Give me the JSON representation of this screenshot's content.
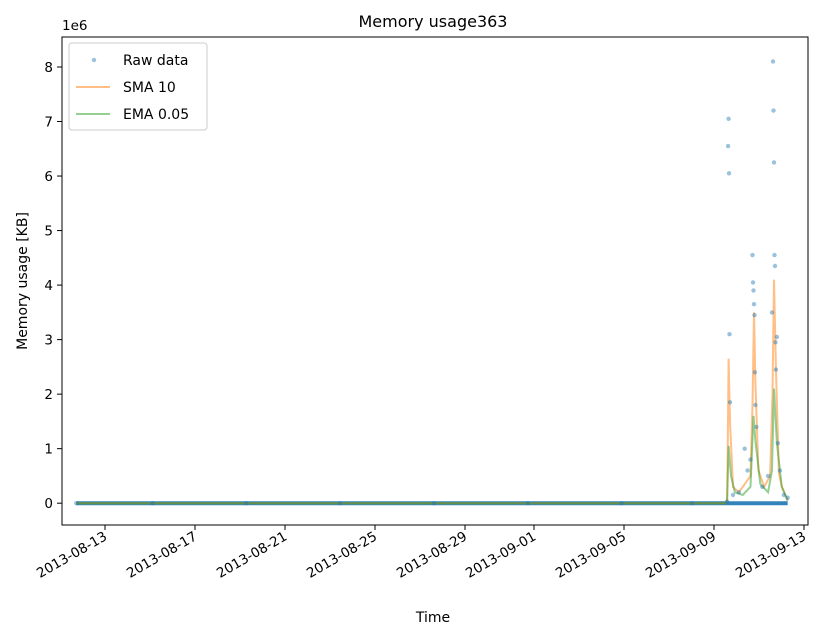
{
  "chart_data": {
    "type": "line",
    "title": "Memory usage363",
    "xlabel": "Time",
    "ylabel": "Memory usage [KB]",
    "y_offset_label": "1e6",
    "y_scale_note": "values in units of 1e6 KB",
    "xlim": [
      "2013-08-12",
      "2013-09-13"
    ],
    "ylim": [
      -0.4,
      8.55
    ],
    "x_ticks": [
      "2013-08-13",
      "2013-08-17",
      "2013-08-21",
      "2013-08-25",
      "2013-08-29",
      "2013-09-01",
      "2013-09-05",
      "2013-09-09",
      "2013-09-13"
    ],
    "y_ticks": [
      0,
      1,
      2,
      3,
      4,
      5,
      6,
      7,
      8
    ],
    "grid": false,
    "legend_position": "top-left",
    "series": [
      {
        "name": "Raw data",
        "style": "points",
        "color": "#1f77b4",
        "points": [
          [
            "2013-08-12 18:00",
            0.0
          ],
          [
            "2013-08-16 00:00",
            0.0
          ],
          [
            "2013-08-20 00:00",
            0.0
          ],
          [
            "2013-08-24 00:00",
            0.0
          ],
          [
            "2013-08-28 00:00",
            0.0
          ],
          [
            "2013-09-01 00:00",
            0.0
          ],
          [
            "2013-09-05 00:00",
            0.0
          ],
          [
            "2013-09-08 00:00",
            0.0
          ],
          [
            "2013-09-09 12:00",
            0.03
          ],
          [
            "2013-09-09 13:00",
            6.55
          ],
          [
            "2013-09-09 13:30",
            7.05
          ],
          [
            "2013-09-09 14:00",
            6.05
          ],
          [
            "2013-09-09 14:30",
            3.1
          ],
          [
            "2013-09-09 15:00",
            1.85
          ],
          [
            "2013-09-09 18:00",
            0.15
          ],
          [
            "2013-09-10 00:00",
            0.2
          ],
          [
            "2013-09-10 06:00",
            1.0
          ],
          [
            "2013-09-10 09:00",
            0.6
          ],
          [
            "2013-09-10 12:00",
            0.8
          ],
          [
            "2013-09-10 14:00",
            4.55
          ],
          [
            "2013-09-10 14:30",
            4.05
          ],
          [
            "2013-09-10 15:00",
            3.9
          ],
          [
            "2013-09-10 15:30",
            3.65
          ],
          [
            "2013-09-10 16:00",
            3.45
          ],
          [
            "2013-09-10 16:30",
            2.4
          ],
          [
            "2013-09-10 17:00",
            1.8
          ],
          [
            "2013-09-10 18:00",
            1.4
          ],
          [
            "2013-09-11 00:00",
            0.3
          ],
          [
            "2013-09-11 06:00",
            0.5
          ],
          [
            "2013-09-11 10:00",
            3.5
          ],
          [
            "2013-09-11 11:00",
            8.1
          ],
          [
            "2013-09-11 11:30",
            7.2
          ],
          [
            "2013-09-11 12:00",
            6.25
          ],
          [
            "2013-09-11 12:30",
            4.55
          ],
          [
            "2013-09-11 13:00",
            4.35
          ],
          [
            "2013-09-11 13:30",
            2.95
          ],
          [
            "2013-09-11 14:00",
            2.45
          ],
          [
            "2013-09-11 15:00",
            3.05
          ],
          [
            "2013-09-11 16:00",
            1.1
          ],
          [
            "2013-09-11 18:00",
            0.6
          ],
          [
            "2013-09-11 22:00",
            0.15
          ],
          [
            "2013-09-12 02:00",
            0.1
          ]
        ]
      },
      {
        "name": "SMA 10",
        "style": "line",
        "color": "#ff7f0e",
        "points": [
          [
            "2013-08-12 18:00",
            0.0
          ],
          [
            "2013-09-09 10:00",
            0.0
          ],
          [
            "2013-09-09 12:00",
            0.05
          ],
          [
            "2013-09-09 12:45",
            1.1
          ],
          [
            "2013-09-09 13:30",
            2.65
          ],
          [
            "2013-09-09 15:00",
            1.5
          ],
          [
            "2013-09-09 18:00",
            0.3
          ],
          [
            "2013-09-10 00:00",
            0.2
          ],
          [
            "2013-09-10 08:00",
            0.4
          ],
          [
            "2013-09-10 12:00",
            0.5
          ],
          [
            "2013-09-10 14:00",
            1.8
          ],
          [
            "2013-09-10 15:30",
            3.5
          ],
          [
            "2013-09-10 17:00",
            2.2
          ],
          [
            "2013-09-10 20:00",
            0.6
          ],
          [
            "2013-09-11 02:00",
            0.3
          ],
          [
            "2013-09-11 08:00",
            0.5
          ],
          [
            "2013-09-11 10:30",
            2.0
          ],
          [
            "2013-09-11 12:00",
            4.1
          ],
          [
            "2013-09-11 14:00",
            2.5
          ],
          [
            "2013-09-11 17:00",
            0.55
          ],
          [
            "2013-09-11 20:00",
            0.3
          ],
          [
            "2013-09-12 02:00",
            0.05
          ]
        ]
      },
      {
        "name": "EMA 0.05",
        "style": "line",
        "color": "#2ca02c",
        "points": [
          [
            "2013-08-12 18:00",
            0.0
          ],
          [
            "2013-09-09 10:00",
            0.0
          ],
          [
            "2013-09-09 12:00",
            0.05
          ],
          [
            "2013-09-09 13:30",
            1.05
          ],
          [
            "2013-09-09 16:00",
            0.5
          ],
          [
            "2013-09-09 20:00",
            0.2
          ],
          [
            "2013-09-10 04:00",
            0.15
          ],
          [
            "2013-09-10 12:00",
            0.3
          ],
          [
            "2013-09-10 15:00",
            1.6
          ],
          [
            "2013-09-10 17:00",
            1.15
          ],
          [
            "2013-09-10 22:00",
            0.35
          ],
          [
            "2013-09-11 06:00",
            0.2
          ],
          [
            "2013-09-11 10:00",
            0.6
          ],
          [
            "2013-09-11 12:00",
            2.1
          ],
          [
            "2013-09-11 15:00",
            1.1
          ],
          [
            "2013-09-11 20:00",
            0.3
          ],
          [
            "2013-09-12 02:00",
            0.05
          ]
        ]
      }
    ]
  }
}
